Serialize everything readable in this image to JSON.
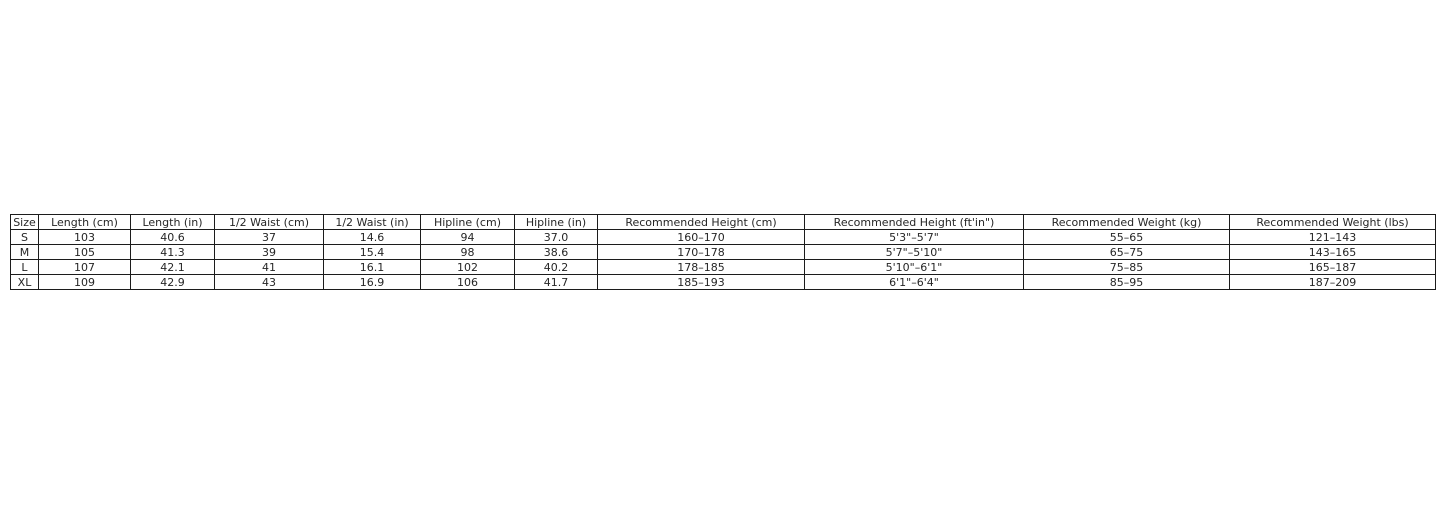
{
  "colors": {
    "background": "#ffffff",
    "border": "#1c1c1c",
    "text": "#262626"
  },
  "chart_data": {
    "type": "table",
    "columns": [
      "Size",
      "Length (cm)",
      "Length (in)",
      "1/2 Waist (cm)",
      "1/2 Waist (in)",
      "Hipline (cm)",
      "Hipline (in)",
      "Recommended Height (cm)",
      "Recommended Height (ft'in\")",
      "Recommended Weight (kg)",
      "Recommended Weight (lbs)"
    ],
    "rows": [
      [
        "S",
        "103",
        "40.6",
        "37",
        "14.6",
        "94",
        "37.0",
        "160–170",
        "5'3\"–5'7\"",
        "55–65",
        "121–143"
      ],
      [
        "M",
        "105",
        "41.3",
        "39",
        "15.4",
        "98",
        "38.6",
        "170–178",
        "5'7\"–5'10\"",
        "65–75",
        "143–165"
      ],
      [
        "L",
        "107",
        "42.1",
        "41",
        "16.1",
        "102",
        "40.2",
        "178–185",
        "5'10\"–6'1\"",
        "75–85",
        "165–187"
      ],
      [
        "XL",
        "109",
        "42.9",
        "43",
        "16.9",
        "106",
        "41.7",
        "185–193",
        "6'1\"–6'4\"",
        "85–95",
        "187–209"
      ]
    ]
  }
}
